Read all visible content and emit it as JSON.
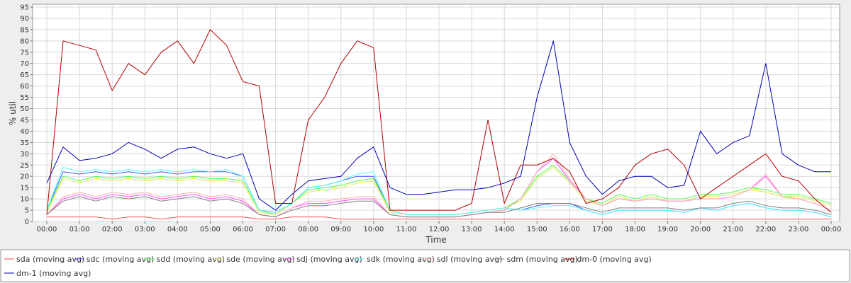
{
  "chart_data": {
    "type": "line",
    "xlabel": "Time",
    "ylabel": "% util",
    "xlim": [
      0,
      24
    ],
    "ylim": [
      0,
      95
    ],
    "grid": true,
    "legend_position": "bottom",
    "x_ticks": [
      "00:00",
      "01:00",
      "02:00",
      "03:00",
      "04:00",
      "05:00",
      "06:00",
      "07:00",
      "08:00",
      "09:00",
      "10:00",
      "11:00",
      "12:00",
      "13:00",
      "14:00",
      "15:00",
      "16:00",
      "17:00",
      "18:00",
      "19:00",
      "20:00",
      "21:00",
      "22:00",
      "23:00",
      "00:00"
    ],
    "y_ticks": [
      0,
      5,
      10,
      15,
      20,
      25,
      30,
      35,
      40,
      45,
      50,
      55,
      60,
      65,
      70,
      75,
      80,
      85,
      90,
      95
    ],
    "x": [
      "00:00",
      "00:30",
      "01:00",
      "01:30",
      "02:00",
      "02:30",
      "03:00",
      "03:30",
      "04:00",
      "04:30",
      "05:00",
      "05:30",
      "06:00",
      "06:30",
      "07:00",
      "07:30",
      "08:00",
      "08:30",
      "09:00",
      "09:30",
      "10:00",
      "10:30",
      "11:00",
      "11:30",
      "12:00",
      "12:30",
      "13:00",
      "13:30",
      "14:00",
      "14:30",
      "15:00",
      "15:30",
      "16:00",
      "16:30",
      "17:00",
      "17:30",
      "18:00",
      "18:30",
      "19:00",
      "19:30",
      "20:00",
      "20:30",
      "21:00",
      "21:30",
      "22:00",
      "22:30",
      "23:00",
      "23:30",
      "00:00"
    ],
    "series": [
      {
        "name": "sda (moving avg)",
        "color": "#ff4d4d",
        "values": [
          2,
          2,
          2,
          2,
          1,
          2,
          2,
          1,
          2,
          2,
          2,
          2,
          2,
          1,
          1,
          2,
          2,
          2,
          1,
          1,
          1,
          1,
          1,
          1,
          1,
          1,
          1,
          1,
          1,
          1,
          1,
          1,
          1,
          1,
          1,
          1,
          1,
          1,
          1,
          1,
          1,
          1,
          1,
          1,
          1,
          1,
          1,
          1,
          1
        ]
      },
      {
        "name": "sdc (moving avg)",
        "color": "#4d4dff",
        "values": [
          5,
          22,
          21,
          22,
          21,
          22,
          21,
          22,
          21,
          22,
          22,
          22,
          20,
          5,
          4,
          8,
          15,
          16,
          18,
          20,
          20,
          5,
          3,
          3,
          3,
          3,
          4,
          5,
          6,
          5,
          7,
          8,
          8,
          5,
          3,
          5,
          5,
          5,
          5,
          4,
          6,
          5,
          7,
          8,
          6,
          5,
          5,
          4,
          2
        ]
      },
      {
        "name": "sdd (moving avg)",
        "color": "#4dff4d",
        "values": [
          5,
          20,
          18,
          20,
          19,
          20,
          19,
          20,
          19,
          20,
          19,
          19,
          18,
          5,
          3,
          8,
          14,
          15,
          16,
          18,
          19,
          5,
          3,
          3,
          3,
          3,
          4,
          5,
          6,
          10,
          20,
          25,
          18,
          10,
          8,
          12,
          10,
          12,
          10,
          10,
          12,
          12,
          13,
          15,
          14,
          12,
          12,
          10,
          8
        ]
      },
      {
        "name": "sde (moving avg)",
        "color": "#e6e64d",
        "values": [
          4,
          19,
          17,
          19,
          18,
          19,
          18,
          19,
          18,
          19,
          18,
          18,
          17,
          4,
          3,
          8,
          13,
          14,
          15,
          17,
          18,
          4,
          3,
          3,
          3,
          3,
          4,
          5,
          6,
          9,
          19,
          24,
          17,
          9,
          7,
          11,
          9,
          11,
          9,
          9,
          11,
          11,
          12,
          14,
          13,
          11,
          11,
          9,
          7
        ]
      },
      {
        "name": "sdj (moving avg)",
        "color": "#ff4dff",
        "values": [
          3,
          10,
          12,
          10,
          12,
          11,
          12,
          10,
          11,
          12,
          10,
          11,
          9,
          3,
          2,
          6,
          8,
          8,
          9,
          10,
          10,
          3,
          2,
          2,
          2,
          2,
          3,
          4,
          5,
          10,
          22,
          28,
          18,
          10,
          7,
          10,
          9,
          10,
          9,
          9,
          10,
          10,
          11,
          14,
          20,
          11,
          10,
          8,
          5
        ]
      },
      {
        "name": "sdk (moving avg)",
        "color": "#4dffff",
        "values": [
          5,
          24,
          22,
          23,
          22,
          23,
          22,
          23,
          22,
          23,
          22,
          23,
          20,
          5,
          4,
          8,
          15,
          16,
          18,
          21,
          22,
          5,
          3,
          3,
          3,
          3,
          4,
          5,
          6,
          5,
          6,
          7,
          7,
          5,
          3,
          5,
          5,
          5,
          5,
          4,
          6,
          5,
          7,
          8,
          6,
          5,
          5,
          4,
          2
        ]
      },
      {
        "name": "sdl (moving avg)",
        "color": "#ffb3b3",
        "values": [
          3,
          11,
          13,
          11,
          13,
          12,
          13,
          11,
          12,
          13,
          11,
          12,
          10,
          3,
          2,
          6,
          9,
          9,
          10,
          11,
          11,
          3,
          2,
          2,
          2,
          2,
          3,
          4,
          5,
          10,
          22,
          30,
          19,
          10,
          7,
          10,
          9,
          10,
          9,
          9,
          10,
          10,
          11,
          14,
          21,
          11,
          10,
          8,
          5
        ]
      },
      {
        "name": "sdm (moving avg)",
        "color": "#808080",
        "values": [
          3,
          9,
          11,
          9,
          11,
          10,
          11,
          9,
          10,
          11,
          9,
          10,
          8,
          3,
          2,
          5,
          7,
          7,
          8,
          9,
          9,
          3,
          2,
          2,
          2,
          2,
          3,
          4,
          4,
          6,
          8,
          8,
          8,
          6,
          4,
          6,
          6,
          6,
          6,
          5,
          6,
          6,
          8,
          9,
          7,
          6,
          6,
          5,
          3
        ]
      },
      {
        "name": "dm-0 (moving avg)",
        "color": "#b30000",
        "values": [
          3,
          80,
          78,
          76,
          58,
          70,
          65,
          75,
          80,
          70,
          85,
          78,
          62,
          60,
          8,
          8,
          45,
          55,
          70,
          80,
          77,
          5,
          5,
          5,
          5,
          5,
          8,
          45,
          8,
          25,
          25,
          28,
          22,
          8,
          10,
          15,
          25,
          30,
          32,
          25,
          10,
          15,
          20,
          25,
          30,
          20,
          18,
          10,
          4
        ]
      },
      {
        "name": "dm-1 (moving avg)",
        "color": "#0000b3",
        "values": [
          17,
          33,
          27,
          28,
          30,
          35,
          32,
          28,
          32,
          33,
          30,
          28,
          30,
          10,
          5,
          12,
          18,
          19,
          20,
          28,
          33,
          15,
          12,
          12,
          13,
          14,
          14,
          15,
          17,
          20,
          55,
          80,
          35,
          20,
          12,
          18,
          20,
          20,
          15,
          16,
          40,
          30,
          35,
          38,
          70,
          30,
          25,
          22,
          22
        ]
      }
    ]
  }
}
